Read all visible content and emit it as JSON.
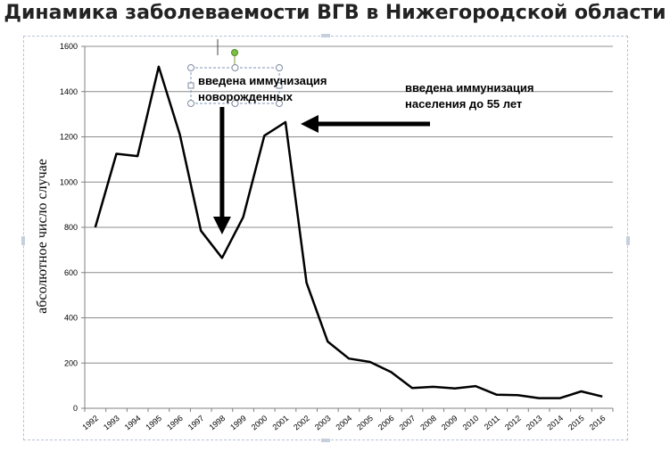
{
  "slide_title": "Динамика заболеваемости ВГВ в Нижегородской области",
  "chart_data": {
    "type": "line",
    "title": "",
    "xlabel": "",
    "ylabel": "абсолютное число случае",
    "ylim": [
      0,
      1600
    ],
    "yticks": [
      0,
      200,
      400,
      600,
      800,
      1000,
      1200,
      1400,
      1600
    ],
    "grid": "horizontal",
    "line_color": "#000000",
    "categories": [
      "1992",
      "1993",
      "1994",
      "1995",
      "1996",
      "1997",
      "1998",
      "1999",
      "2000",
      "2001",
      "2002",
      "2003",
      "2004",
      "2005",
      "2006",
      "2007",
      "2008",
      "2009",
      "2010",
      "2011",
      "2012",
      "2013",
      "2014",
      "2015",
      "2016"
    ],
    "values": [
      800,
      1125,
      1115,
      1510,
      1210,
      785,
      665,
      845,
      1205,
      1265,
      555,
      295,
      220,
      205,
      160,
      90,
      95,
      88,
      98,
      60,
      58,
      45,
      45,
      75,
      52
    ],
    "annotations": [
      {
        "lines": [
          "введена иммунизация",
          "новорожденных"
        ],
        "points_to": "1998"
      },
      {
        "lines": [
          "введена иммунизация",
          "населения до 55 лет"
        ],
        "points_to": "2001"
      }
    ]
  }
}
